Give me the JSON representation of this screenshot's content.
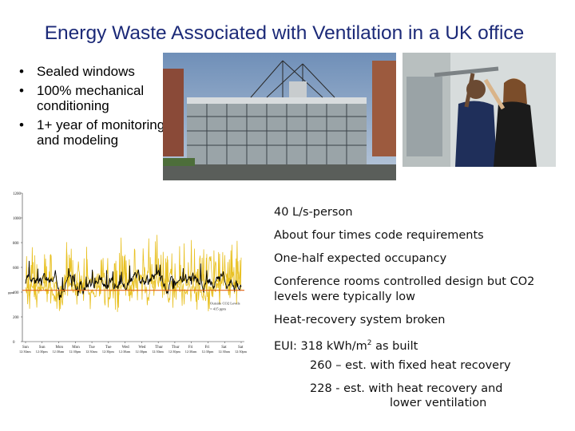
{
  "title": "Energy Waste Associated with Ventilation in a UK office",
  "bullets": [
    {
      "text": "Sealed windows"
    },
    {
      "text": "100% mechanical conditioning"
    },
    {
      "text": "1+ year of monitoring and modeling"
    }
  ],
  "bullet_glyph": "•",
  "photos": {
    "building": "office-building-photo",
    "people": "researchers-monitoring-photo"
  },
  "notes": {
    "line1": "40 L/s-person",
    "line2": "About four times code requirements",
    "line3": "One-half expected occupancy",
    "line4": "Conference rooms controlled design but CO2 levels were typically low",
    "line5": "Heat-recovery system broken",
    "eui_prefix": "EUI:  318 kWh/m",
    "eui_sup": "2",
    "eui_suffix": " as built",
    "sub1": "260 – est. with fixed heat recovery",
    "sub2a": "228 -  est. with heat recovery and",
    "sub2b": "lower ventilation"
  },
  "chart_data": {
    "type": "line",
    "y_ticks": [
      "1200",
      "1000",
      "800",
      "600",
      "400",
      "200",
      "0"
    ],
    "ylim": [
      0,
      1200
    ],
    "x_days": [
      "Sun",
      "Sun",
      "Mon",
      "Mon",
      "Tue",
      "Tue",
      "Wed",
      "Wed",
      "Thur",
      "Thur",
      "Fri",
      "Fri",
      "Sat",
      "Sat"
    ],
    "x_times": [
      "12:30am",
      "12:30pm",
      "12:30am",
      "12:30pm",
      "12:30am",
      "12:30pm",
      "12:30am",
      "12:30pm",
      "12:30am",
      "12:30pm",
      "12:30am",
      "12:30pm",
      "12:30am",
      "12:30pm"
    ],
    "ylabel": "ppm",
    "reference_value": 415,
    "reference_label_1": "Outside CO2 Levels",
    "reference_label_2": "= 415 ppm",
    "series_colors": [
      "#e8c020",
      "#000000",
      "#e06010"
    ]
  }
}
